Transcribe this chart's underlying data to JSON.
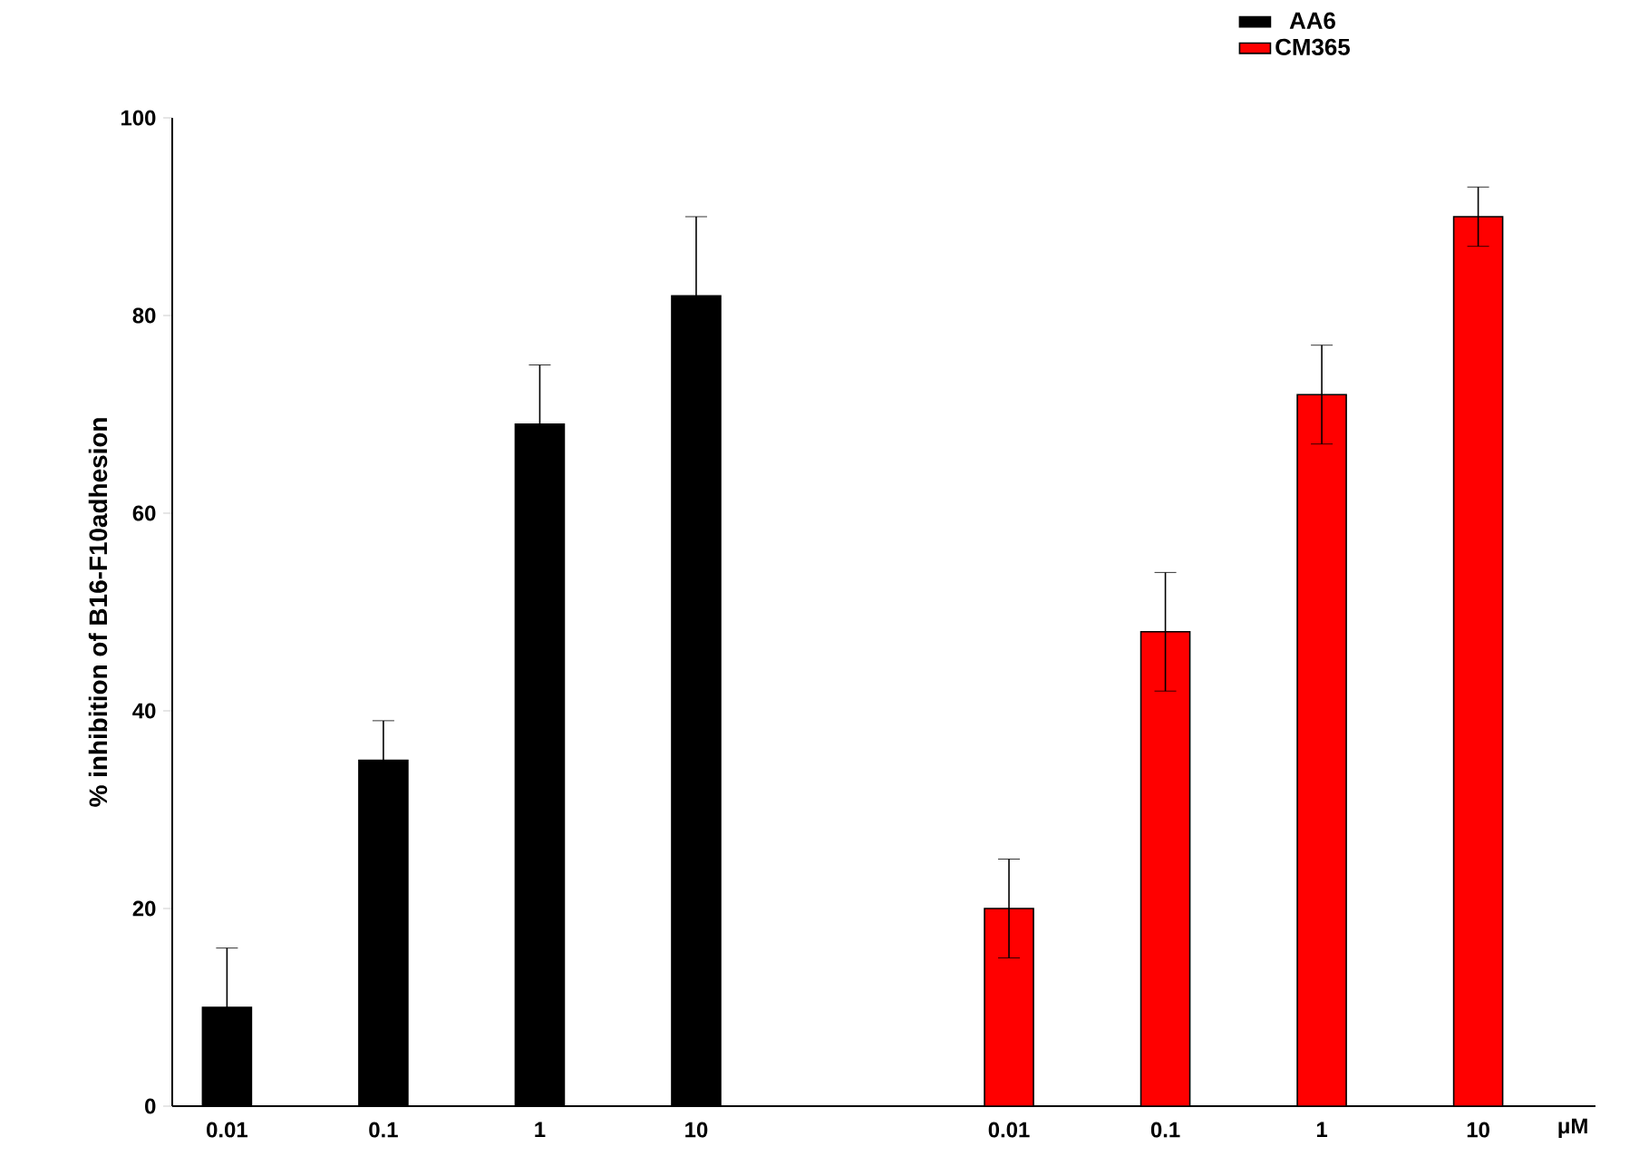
{
  "chart_data": {
    "type": "bar",
    "ylabel": "% inhibition of B16-F10adhesion",
    "xlabel": "μM",
    "categories": [
      "0.01",
      "0.1",
      "1",
      "10",
      null,
      "0.01",
      "0.1",
      "1",
      "10"
    ],
    "series": [
      {
        "name": "AA6",
        "color": "#000000",
        "values": [
          10,
          35,
          69,
          82,
          null,
          null,
          null,
          null,
          null
        ],
        "errors": [
          6,
          4,
          6,
          8,
          null,
          null,
          null,
          null,
          null
        ]
      },
      {
        "name": "CM365",
        "color": "#ff0000",
        "values": [
          null,
          null,
          null,
          null,
          null,
          20,
          48,
          72,
          90
        ],
        "errors": [
          null,
          null,
          null,
          null,
          null,
          5,
          6,
          5,
          3
        ]
      }
    ],
    "ylim": [
      0,
      100
    ],
    "yticks": [
      0,
      20,
      40,
      60,
      80,
      100
    ],
    "legend": "top right"
  }
}
